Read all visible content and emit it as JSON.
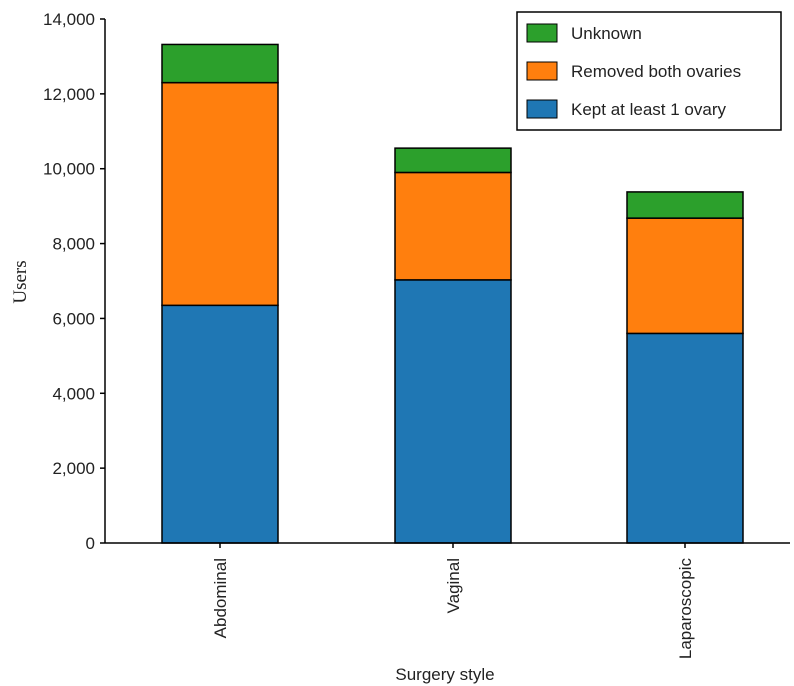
{
  "chart_data": {
    "type": "bar",
    "stacked": true,
    "title": "",
    "xlabel": "Surgery style",
    "ylabel": "Users",
    "ylim": [
      0,
      14000
    ],
    "yticks": [
      0,
      2000,
      4000,
      6000,
      8000,
      10000,
      12000,
      14000
    ],
    "ytick_labels": [
      "0",
      "2,000",
      "4,000",
      "6,000",
      "8,000",
      "10,000",
      "12,000",
      "14,000"
    ],
    "categories": [
      "Abdominal",
      "Vaginal",
      "Laparoscopic"
    ],
    "series": [
      {
        "name": "Kept at least 1 ovary",
        "color": "#1f77b4",
        "values": [
          6350,
          7030,
          5600
        ]
      },
      {
        "name": "Removed both ovaries",
        "color": "#ff7f0e",
        "values": [
          5950,
          2870,
          3080
        ]
      },
      {
        "name": "Unknown",
        "color": "#2ca02c",
        "values": [
          1020,
          650,
          700
        ]
      }
    ],
    "legend": {
      "position": "top-right",
      "order": [
        "Unknown",
        "Removed both ovaries",
        "Kept at least 1 ovary"
      ]
    },
    "grid": false
  }
}
